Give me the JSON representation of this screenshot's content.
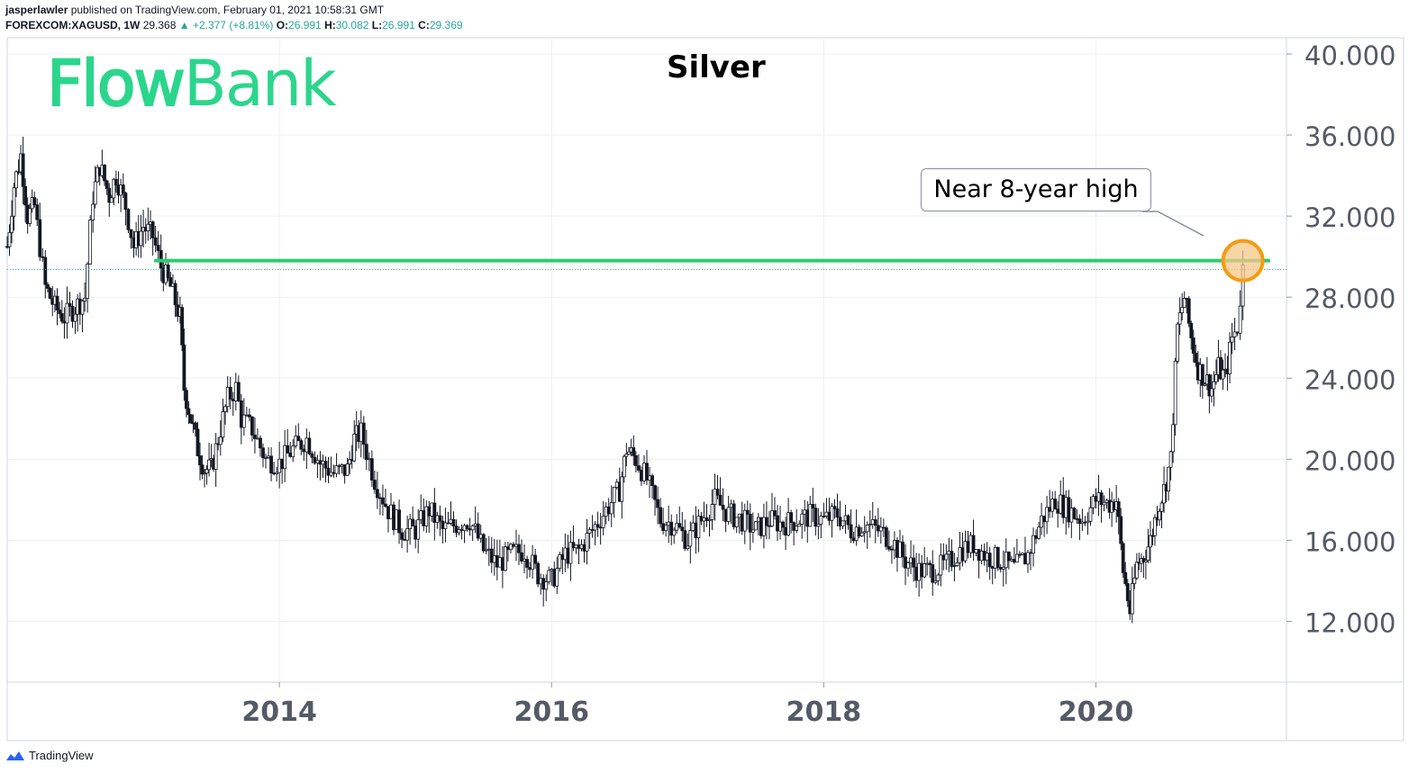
{
  "header": {
    "publisher_line": "jasperlawler published on TradingView.com, February 01, 2021 10:58:31 GMT",
    "publisher": "jasperlawler",
    "published_rest": " published on TradingView.com, February 01, 2021 10:58:31 GMT",
    "symbol": "FOREXCOM:XAGUSD, 1W",
    "last": "29.368",
    "change": "▲ +2.377 (+8.81%)",
    "o_label": "O:",
    "o": "26.991",
    "h_label": "H:",
    "h": "30.082",
    "l_label": "L:",
    "l": "26.991",
    "c_label": "C:",
    "c": "29.369"
  },
  "logo": {
    "part1": "Flow",
    "part2": "Bank"
  },
  "callout": "Near 8-year high",
  "footer": {
    "brand": "TradingView"
  },
  "colors": {
    "candle": "#131722",
    "resistance": "#2ecc71",
    "highlight_fill": "#f5c78a",
    "highlight_stroke": "#f39c12",
    "logo": "#2bd68c",
    "header_value": "#26a69a"
  },
  "chart_data": {
    "type": "line",
    "title": "Silver",
    "instrument": "FOREXCOM:XAGUSD",
    "interval": "1W",
    "x_ticks": [
      "2014",
      "2016",
      "2018",
      "2020"
    ],
    "y_ticks": [
      "12.000",
      "16.000",
      "20.000",
      "24.000",
      "28.000",
      "32.000",
      "36.000",
      "40.000"
    ],
    "ylim": [
      9.0,
      40.8
    ],
    "xlim": [
      2012.0,
      2021.4
    ],
    "grid": true,
    "resistance_level": 29.8,
    "last_price": 29.368,
    "highlight_point": {
      "x": 2021.08,
      "y": 29.8
    },
    "series": [
      {
        "x": [
          2012.0,
          2012.05,
          2012.1,
          2012.15,
          2012.2,
          2012.28,
          2012.35,
          2012.42,
          2012.5,
          2012.57,
          2012.63,
          2012.68,
          2012.75,
          2012.8,
          2012.87,
          2012.93,
          2013.0,
          2013.07,
          2013.13,
          2013.2,
          2013.27,
          2013.3,
          2013.35,
          2013.4,
          2013.45,
          2013.5,
          2013.55,
          2013.62,
          2013.68,
          2013.72,
          2013.8,
          2013.9,
          2014.0,
          2014.1,
          2014.2,
          2014.3,
          2014.4,
          2014.5,
          2014.55,
          2014.6,
          2014.7,
          2014.8,
          2014.9,
          2015.0,
          2015.1,
          2015.2,
          2015.3,
          2015.4,
          2015.5,
          2015.6,
          2015.7,
          2015.8,
          2015.9,
          2016.0,
          2016.1,
          2016.2,
          2016.3,
          2016.4,
          2016.5,
          2016.55,
          2016.62,
          2016.7,
          2016.8,
          2016.9,
          2017.0,
          2017.1,
          2017.2,
          2017.3,
          2017.4,
          2017.5,
          2017.6,
          2017.7,
          2017.8,
          2017.9,
          2018.0,
          2018.1,
          2018.2,
          2018.3,
          2018.4,
          2018.5,
          2018.6,
          2018.7,
          2018.8,
          2018.9,
          2019.0,
          2019.1,
          2019.2,
          2019.3,
          2019.4,
          2019.5,
          2019.6,
          2019.7,
          2019.8,
          2019.9,
          2020.0,
          2020.1,
          2020.15,
          2020.2,
          2020.25,
          2020.3,
          2020.35,
          2020.4,
          2020.45,
          2020.5,
          2020.55,
          2020.6,
          2020.65,
          2020.7,
          2020.75,
          2020.8,
          2020.85,
          2020.9,
          2020.95,
          2021.0,
          2021.04,
          2021.08
        ],
        "values": [
          30.5,
          33.5,
          35.0,
          32.0,
          32.5,
          28.5,
          27.5,
          27.0,
          27.5,
          28.0,
          33.0,
          34.5,
          33.0,
          34.0,
          32.5,
          30.5,
          31.5,
          31.0,
          29.5,
          28.5,
          27.0,
          23.5,
          22.0,
          20.5,
          19.5,
          19.5,
          21.0,
          23.0,
          23.5,
          22.0,
          21.5,
          20.0,
          19.8,
          20.5,
          21.0,
          19.8,
          19.3,
          19.5,
          21.0,
          21.3,
          19.0,
          17.5,
          16.5,
          16.5,
          17.5,
          16.5,
          16.8,
          17.0,
          15.5,
          14.8,
          15.3,
          15.5,
          14.3,
          14.0,
          15.3,
          15.5,
          16.5,
          17.5,
          18.5,
          20.5,
          20.0,
          19.0,
          17.0,
          16.8,
          16.0,
          17.0,
          18.0,
          17.3,
          17.0,
          16.5,
          17.0,
          16.8,
          17.0,
          17.2,
          17.0,
          17.3,
          16.5,
          16.8,
          16.5,
          16.0,
          15.0,
          14.5,
          14.5,
          14.8,
          15.5,
          15.8,
          15.2,
          15.0,
          14.6,
          15.3,
          17.0,
          18.0,
          17.5,
          17.0,
          18.0,
          17.8,
          18.0,
          14.5,
          12.5,
          14.8,
          15.2,
          16.0,
          17.5,
          18.5,
          20.0,
          26.5,
          28.0,
          26.0,
          24.5,
          24.0,
          23.5,
          24.5,
          24.0,
          26.0,
          26.5,
          29.4
        ]
      }
    ]
  }
}
